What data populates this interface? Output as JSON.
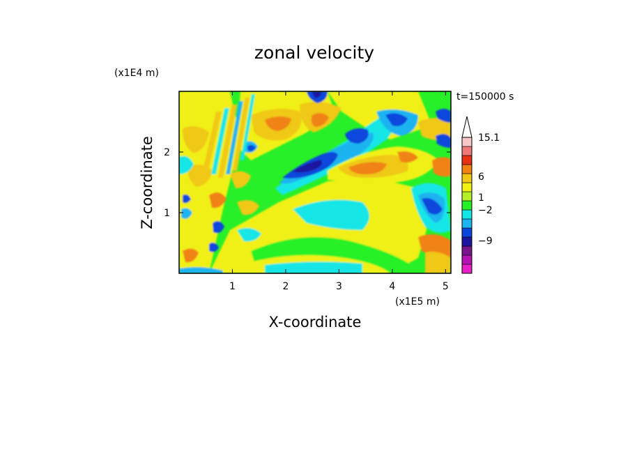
{
  "chart_data": {
    "type": "heatmap",
    "title": "zonal velocity",
    "xlabel": "X-coordinate",
    "ylabel": "Z-coordinate",
    "x_unit": "(x1E5 m)",
    "y_unit": "(x1E4 m)",
    "time_label": "t=150000 s",
    "xlim": [
      0,
      5.1
    ],
    "ylim": [
      0,
      3.0
    ],
    "x_ticks": [
      {
        "value": 1,
        "label": "1"
      },
      {
        "value": 2,
        "label": "2"
      },
      {
        "value": 3,
        "label": "3"
      },
      {
        "value": 4,
        "label": "4"
      },
      {
        "value": 5,
        "label": "5"
      }
    ],
    "y_ticks": [
      {
        "value": 1,
        "label": "1"
      },
      {
        "value": 2,
        "label": "2"
      }
    ],
    "colorbar": {
      "levels": [
        -15,
        -12,
        -9,
        -6,
        -3,
        -2,
        -1,
        0,
        1,
        2,
        3,
        6,
        9,
        12,
        15.1
      ],
      "colors": [
        "#e81ec8",
        "#b414b4",
        "#78148c",
        "#1e14a0",
        "#0a46dc",
        "#1eb4f0",
        "#14e6e6",
        "#28f028",
        "#b4f028",
        "#f0f014",
        "#f0c814",
        "#f08214",
        "#e63214",
        "#f07878",
        "#f8c8c8"
      ],
      "extend_max_color": "#ffffff",
      "tick_labels": [
        {
          "value": 15.1,
          "label": "15.1"
        },
        {
          "value": 6,
          "label": "6"
        },
        {
          "value": 1,
          "label": "1"
        },
        {
          "value": -2,
          "label": "−2"
        },
        {
          "value": -9,
          "label": "−9"
        }
      ]
    },
    "field_features": [
      {
        "x": 2.4,
        "z": 1.7,
        "u": -8
      },
      {
        "x": 3.2,
        "z": 2.3,
        "u": -8
      },
      {
        "x": 4.1,
        "z": 2.6,
        "u": -8
      },
      {
        "x": 2.5,
        "z": 2.9,
        "u": -7
      },
      {
        "x": 3.3,
        "z": 1.75,
        "u": 6
      },
      {
        "x": 3.9,
        "z": 2.3,
        "u": 5
      },
      {
        "x": 1.7,
        "z": 2.5,
        "u": 4
      },
      {
        "x": 2.6,
        "z": 2.6,
        "u": 5
      },
      {
        "x": 4.5,
        "z": 1.2,
        "u": -6
      },
      {
        "x": 0.8,
        "z": 0.8,
        "u": -6
      },
      {
        "x": 2.5,
        "z": 0.3,
        "u": 1
      },
      {
        "x": 3.3,
        "z": 0.8,
        "u": -2
      }
    ]
  }
}
